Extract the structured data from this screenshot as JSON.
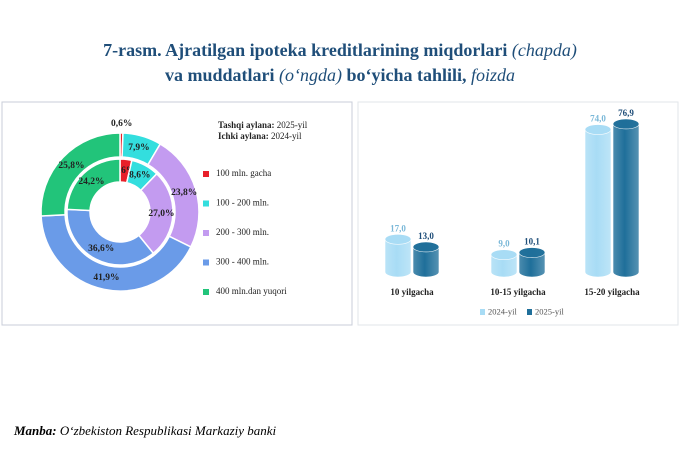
{
  "title": [
    "7-rasm. Ajratilgan ipoteka kreditlarining miqdorlari",
    "(chapda)",
    "va muddatlari",
    "(o‘ngda)",
    "bo‘yicha tahlili,",
    "foizda"
  ],
  "source": [
    "Manba:",
    "O‘zbekiston Respublikasi Markaziy banki"
  ],
  "chart_data": [
    {
      "type": "donut",
      "ring_labels": [
        "Tashqi aylana:",
        "Ichki aylana:"
      ],
      "categories": [
        "100 mln. gacha",
        "100 - 200 mln.",
        "200 - 300 mln.",
        "300 - 400 mln.",
        "400 mln.dan yuqori"
      ],
      "colors": [
        "#e8202a",
        "#33dede",
        "#c39bf0",
        "#6a9be8",
        "#22c47a"
      ],
      "series": [
        {
          "name": "2025-yil",
          "values": [
            0.6,
            7.9,
            23.8,
            41.9,
            25.8
          ],
          "value_labels": [
            "0,6%",
            "7,9%",
            "23,8%",
            "41,9%",
            "25,8%"
          ]
        },
        {
          "name": "2024-yil",
          "values": [
            3.6,
            8.6,
            27.0,
            36.6,
            24.2
          ],
          "value_labels": [
            "3,6%",
            "8,6%",
            "27,0%",
            "36,6%",
            "24,2%"
          ]
        }
      ]
    },
    {
      "type": "bar",
      "categories": [
        "10 yilgacha",
        "10-15 yilgacha",
        "15-20 yilgacha"
      ],
      "ylim": [
        0,
        80
      ],
      "series": [
        {
          "name": "2024-yil",
          "color": "#a8dcf5",
          "values": [
            17.0,
            9.0,
            74.0
          ],
          "value_labels": [
            "17,0",
            "9,0",
            "74,0"
          ]
        },
        {
          "name": "2025-yil",
          "color": "#1f6f9a",
          "values": [
            13.0,
            10.1,
            76.9
          ],
          "value_labels": [
            "13,0",
            "10,1",
            "76,9"
          ]
        }
      ]
    }
  ]
}
